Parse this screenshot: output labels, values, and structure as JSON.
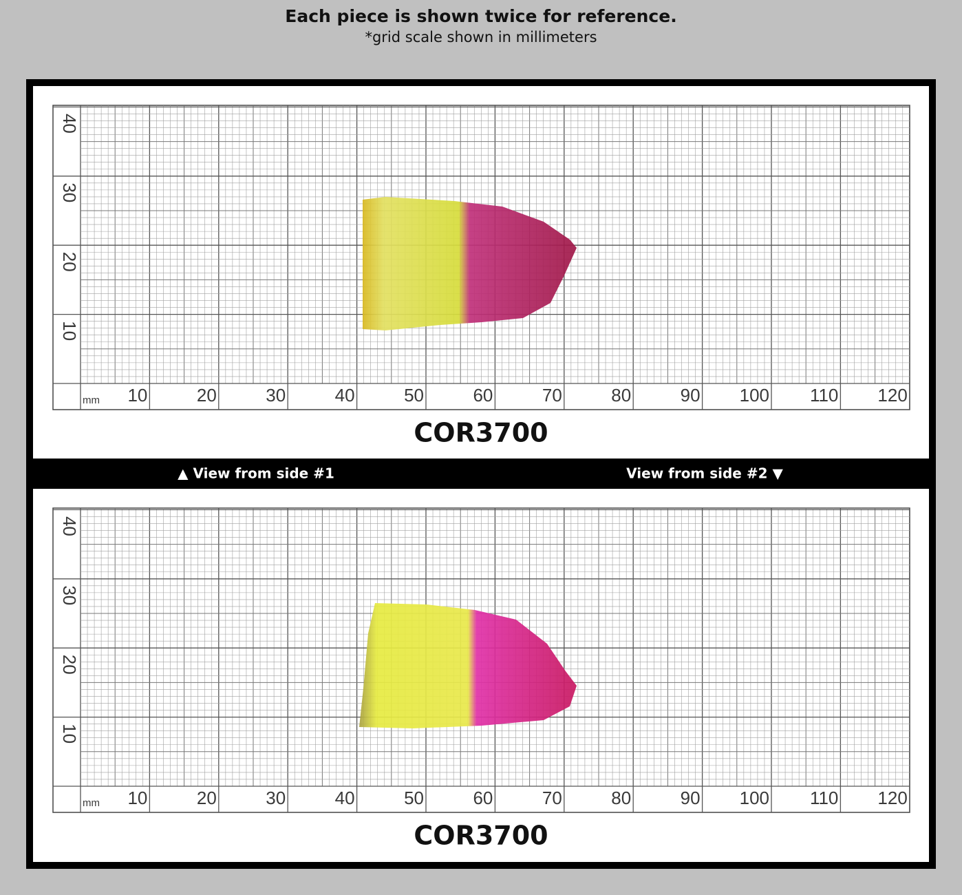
{
  "header": {
    "title": "Each piece is shown twice for reference.",
    "subtitle": "*grid scale shown in millimeters"
  },
  "panels": [
    {
      "y_labels": [
        40,
        30,
        20,
        10
      ],
      "unit": "mm",
      "x_labels": [
        10,
        20,
        30,
        40,
        50,
        60,
        70,
        80,
        90,
        100,
        110,
        120
      ],
      "code": "COR3700"
    },
    {
      "y_labels": [
        40,
        30,
        20,
        10
      ],
      "unit": "mm",
      "x_labels": [
        10,
        20,
        30,
        40,
        50,
        60,
        70,
        80,
        90,
        100,
        110,
        120
      ],
      "code": "COR3700"
    }
  ],
  "divider": {
    "left": "▲ View from side #1",
    "right": "View from side #2 ▼"
  }
}
